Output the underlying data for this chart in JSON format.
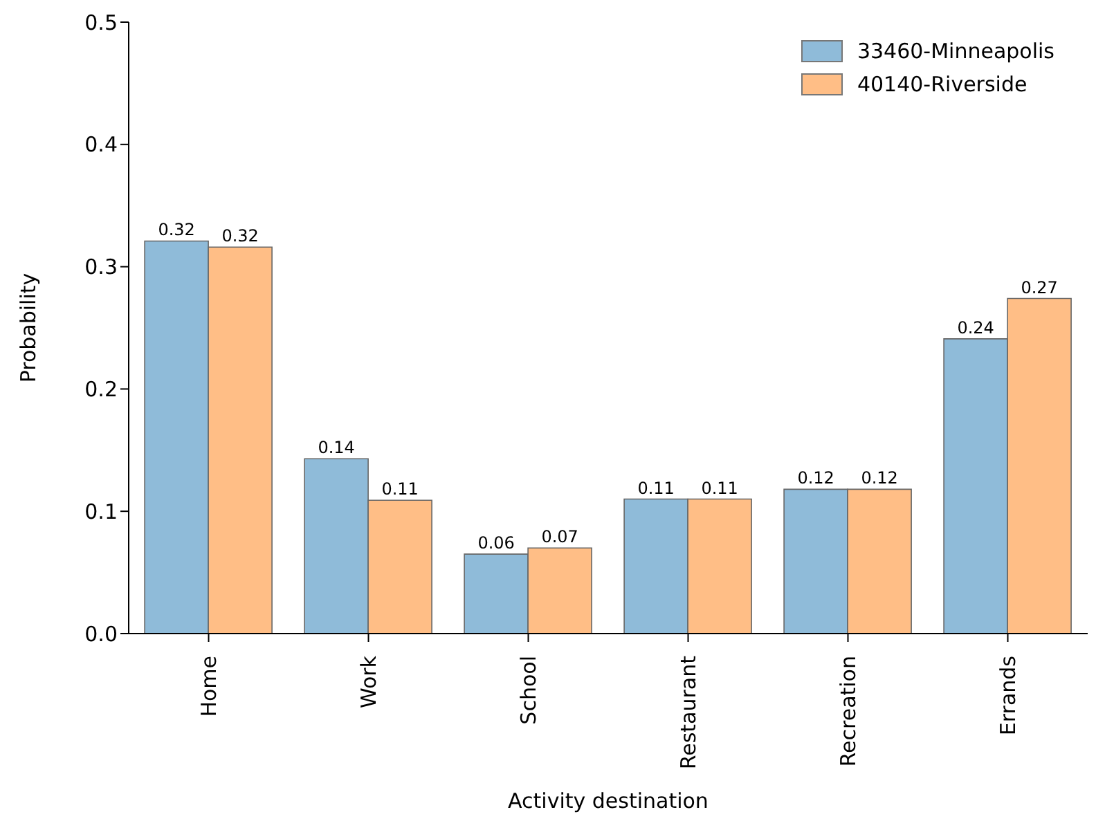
{
  "chart_data": {
    "type": "bar",
    "xlabel": "Activity destination",
    "ylabel": "Probability",
    "categories": [
      "Home",
      "Work",
      "School",
      "Restaurant",
      "Recreation",
      "Errands"
    ],
    "series": [
      {
        "name": "33460-Minneapolis",
        "color": "#8fbbd9",
        "values": [
          0.321,
          0.143,
          0.065,
          0.11,
          0.118,
          0.241
        ],
        "value_labels": [
          "0.32",
          "0.14",
          "0.06",
          "0.11",
          "0.12",
          "0.24"
        ]
      },
      {
        "name": "40140-Riverside",
        "color": "#ffbe86",
        "values": [
          0.316,
          0.109,
          0.07,
          0.11,
          0.118,
          0.274
        ],
        "value_labels": [
          "0.32",
          "0.11",
          "0.07",
          "0.11",
          "0.12",
          "0.27"
        ]
      }
    ],
    "ylim": [
      0,
      0.5
    ],
    "yticks": [
      {
        "value": 0,
        "label": "0.0"
      },
      {
        "value": 0.1,
        "label": "0.1"
      },
      {
        "value": 0.2,
        "label": "0.2"
      },
      {
        "value": 0.3,
        "label": "0.3"
      },
      {
        "value": 0.4,
        "label": "0.4"
      },
      {
        "value": 0.5,
        "label": "0.5"
      }
    ],
    "grid": false,
    "legend": "top right"
  }
}
